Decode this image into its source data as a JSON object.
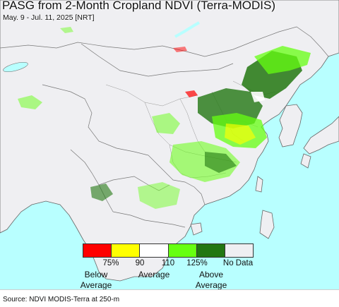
{
  "title": "PASG from 2-Month Cropland NDVI (Terra-MODIS)",
  "subtitle": "May. 9 - Jul. 11, 2025 [NRT]",
  "colors": {
    "ocean": "#b8ffff",
    "land": "#efeff2",
    "border": "#777777",
    "lake": "#ffffff"
  },
  "legend": {
    "swatches": [
      {
        "color": "#ff0000"
      },
      {
        "color": "#ffff00"
      },
      {
        "color": "#ffffff"
      },
      {
        "color": "#66ff11"
      },
      {
        "color": "#227711"
      },
      {
        "color": "#efeff2"
      }
    ],
    "ticks": [
      "75%",
      "90",
      "110",
      "125%",
      "No Data"
    ],
    "categories": [
      {
        "line1": "Below",
        "line2": "Average"
      },
      {
        "line1": "Average",
        "line2": ""
      },
      {
        "line1": "Above",
        "line2": "Average"
      }
    ]
  },
  "source": "Source: NDVI MODIS-Terra at 250-m"
}
